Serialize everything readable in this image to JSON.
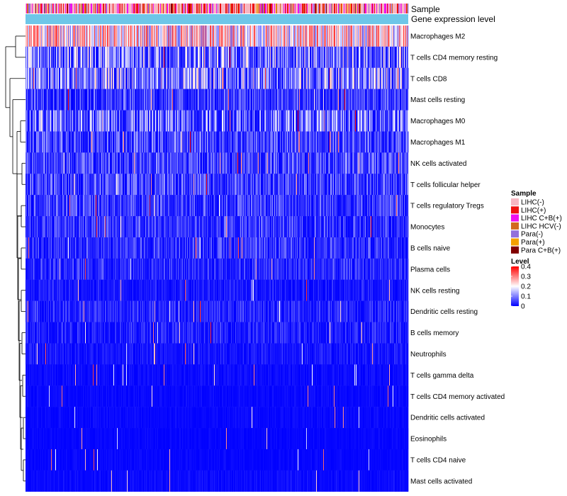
{
  "chart_data": {
    "type": "heatmap",
    "title": "",
    "annotation_labels": {
      "sample": "Sample",
      "gene_expression": "Gene expression level"
    },
    "gene_expression_color": "#6ec6e8",
    "rows": [
      {
        "name": "Macrophages M2",
        "mean": 0.22
      },
      {
        "name": "T cells CD4 memory resting",
        "mean": 0.115
      },
      {
        "name": "T cells CD8",
        "mean": 0.12
      },
      {
        "name": "Mast cells resting",
        "mean": 0.055
      },
      {
        "name": "Macrophages M0",
        "mean": 0.1
      },
      {
        "name": "Macrophages M1",
        "mean": 0.065
      },
      {
        "name": "NK cells activated",
        "mean": 0.06
      },
      {
        "name": "T cells follicular helper",
        "mean": 0.06
      },
      {
        "name": "T cells regulatory  Tregs",
        "mean": 0.055
      },
      {
        "name": "Monocytes",
        "mean": 0.05
      },
      {
        "name": "B cells naive",
        "mean": 0.045
      },
      {
        "name": "Plasma cells",
        "mean": 0.04
      },
      {
        "name": "NK cells resting",
        "mean": 0.022
      },
      {
        "name": "Dendritic cells resting",
        "mean": 0.035
      },
      {
        "name": "B cells memory",
        "mean": 0.03
      },
      {
        "name": "Neutrophils",
        "mean": 0.02
      },
      {
        "name": "T cells gamma delta",
        "mean": 0.01
      },
      {
        "name": "T cells CD4 memory activated",
        "mean": 0.008
      },
      {
        "name": "Dendritic cells activated",
        "mean": 0.008
      },
      {
        "name": "Eosinophils",
        "mean": 0.006
      },
      {
        "name": "T cells CD4 naive",
        "mean": 0.006
      },
      {
        "name": "Mast cells activated",
        "mean": 0.01
      }
    ],
    "n_samples": 540,
    "sample_groups": [
      {
        "name": "LIHC(-)",
        "color": "#f7b6c2"
      },
      {
        "name": "LIHC(+)",
        "color": "#ee1111"
      },
      {
        "name": "LIHC C+B(+)",
        "color": "#ee11ee"
      },
      {
        "name": "LIHC HCV(-)",
        "color": "#d2691e"
      },
      {
        "name": "Para(-)",
        "color": "#9370db"
      },
      {
        "name": "Para(+)",
        "color": "#f5a000"
      },
      {
        "name": "Para C+B(+)",
        "color": "#800000"
      }
    ],
    "sample_group_weights": [
      0.45,
      0.22,
      0.16,
      0.05,
      0.06,
      0.04,
      0.02
    ],
    "legend_sample_title": "Sample",
    "legend_level_title": "Level",
    "level_range": [
      0,
      0.4
    ],
    "level_ticks": [
      "0.4",
      "0.3",
      "0.2",
      "0.1",
      "0"
    ],
    "level_colors": [
      "#0000ff",
      "#ffffff",
      "#ff0000"
    ]
  }
}
